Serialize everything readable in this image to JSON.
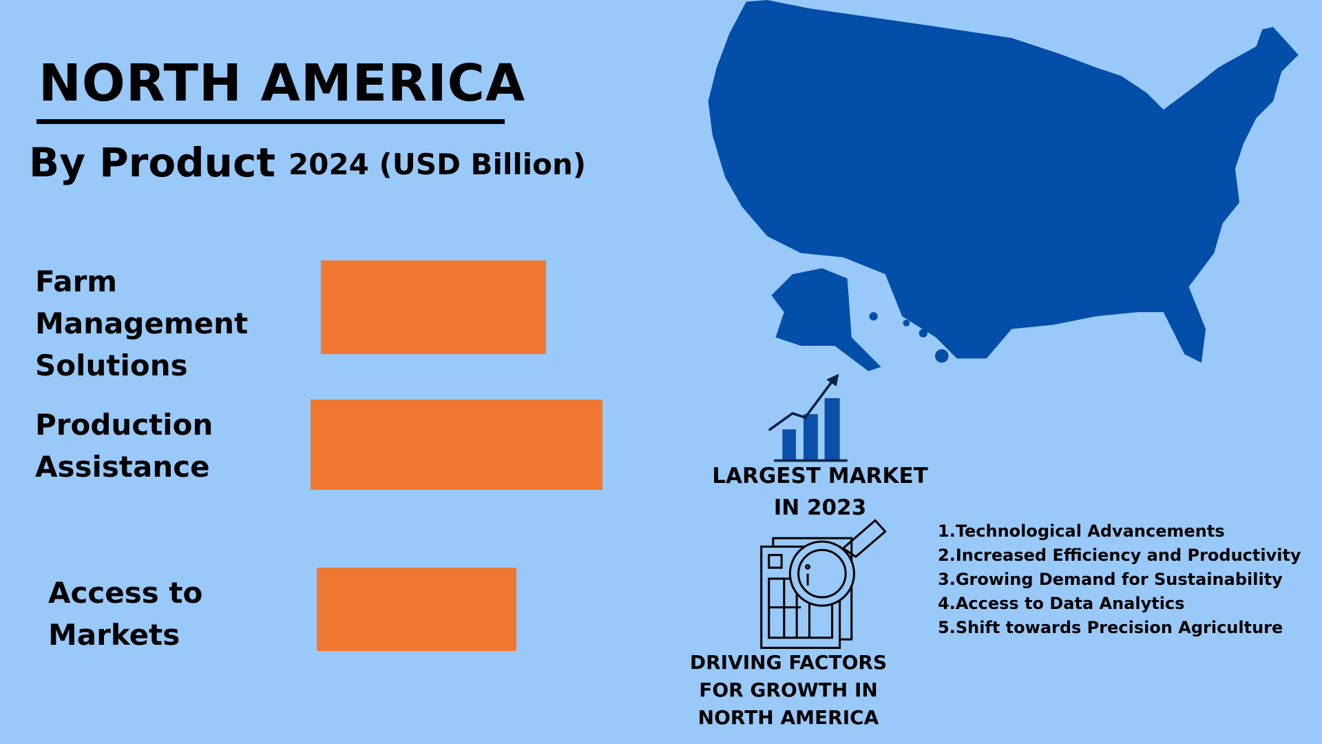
{
  "header": {
    "title": "NORTH AMERICA"
  },
  "chart_data": {
    "type": "bar",
    "title": "By Product",
    "subtitle": "2024 (USD Billion)",
    "categories": [
      "Farm Management Solutions",
      "Production Assistance",
      "Access to Markets"
    ],
    "values": [
      2.7,
      3.5,
      2.4
    ],
    "color": "#f07832",
    "xlim": [
      0,
      4
    ]
  },
  "highlight": {
    "label": "LARGEST MARKET IN 2023"
  },
  "drivers": {
    "title": "DRIVING FACTORS FOR GROWTH IN NORTH AMERICA",
    "items": [
      "1.Technological Advancements",
      "2.Increased Efficiency and Productivity",
      "3.Growing Demand for Sustainability",
      "4.Access to Data Analytics",
      "5.Shift towards Precision Agriculture"
    ]
  }
}
